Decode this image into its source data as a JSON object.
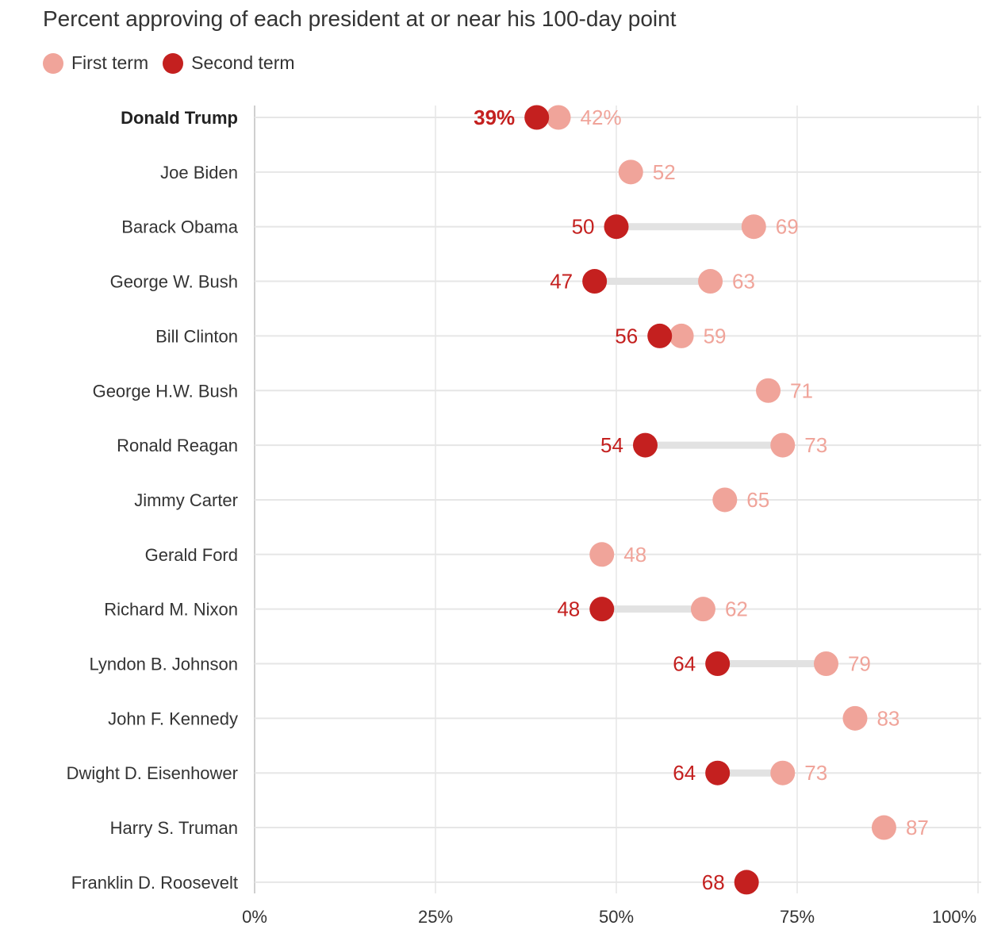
{
  "title": "Percent approving of each president at or near his 100-day point",
  "legend": {
    "first_term": "First term",
    "second_term": "Second term"
  },
  "colors": {
    "first_term": "#f0a49a",
    "second_term": "#c4201f",
    "connector": "#e2e2e2",
    "gridline": "#e6e6e6"
  },
  "chart_data": {
    "type": "dot-plot",
    "title": "Percent approving of each president at or near his 100-day point",
    "xlim": [
      0,
      100
    ],
    "x_ticks": [
      0,
      25,
      50,
      75,
      100
    ],
    "x_tick_labels": [
      "0%",
      "25%",
      "50%",
      "75%",
      "100%"
    ],
    "grid": true,
    "legend_position": "top-left",
    "series": [
      {
        "name": "First term"
      },
      {
        "name": "Second term"
      }
    ],
    "rows": [
      {
        "president": "Donald Trump",
        "first": 42,
        "second": 39,
        "first_label": "42%",
        "second_label": "39%",
        "highlight": true
      },
      {
        "president": "Joe Biden",
        "first": 52,
        "second": null,
        "first_label": "52",
        "second_label": ""
      },
      {
        "president": "Barack Obama",
        "first": 69,
        "second": 50,
        "first_label": "69",
        "second_label": "50"
      },
      {
        "president": "George W. Bush",
        "first": 63,
        "second": 47,
        "first_label": "63",
        "second_label": "47"
      },
      {
        "president": "Bill Clinton",
        "first": 59,
        "second": 56,
        "first_label": "59",
        "second_label": "56"
      },
      {
        "president": "George H.W. Bush",
        "first": 71,
        "second": null,
        "first_label": "71",
        "second_label": ""
      },
      {
        "president": "Ronald Reagan",
        "first": 73,
        "second": 54,
        "first_label": "73",
        "second_label": "54"
      },
      {
        "president": "Jimmy Carter",
        "first": 65,
        "second": null,
        "first_label": "65",
        "second_label": ""
      },
      {
        "president": "Gerald Ford",
        "first": 48,
        "second": null,
        "first_label": "48",
        "second_label": ""
      },
      {
        "president": "Richard M. Nixon",
        "first": 62,
        "second": 48,
        "first_label": "62",
        "second_label": "48"
      },
      {
        "president": "Lyndon B. Johnson",
        "first": 79,
        "second": 64,
        "first_label": "79",
        "second_label": "64"
      },
      {
        "president": "John F. Kennedy",
        "first": 83,
        "second": null,
        "first_label": "83",
        "second_label": ""
      },
      {
        "president": "Dwight D. Eisenhower",
        "first": 73,
        "second": 64,
        "first_label": "73",
        "second_label": "64"
      },
      {
        "president": "Harry S. Truman",
        "first": 87,
        "second": null,
        "first_label": "87",
        "second_label": ""
      },
      {
        "president": "Franklin D. Roosevelt",
        "first": null,
        "second": 68,
        "first_label": "",
        "second_label": "68"
      }
    ]
  }
}
